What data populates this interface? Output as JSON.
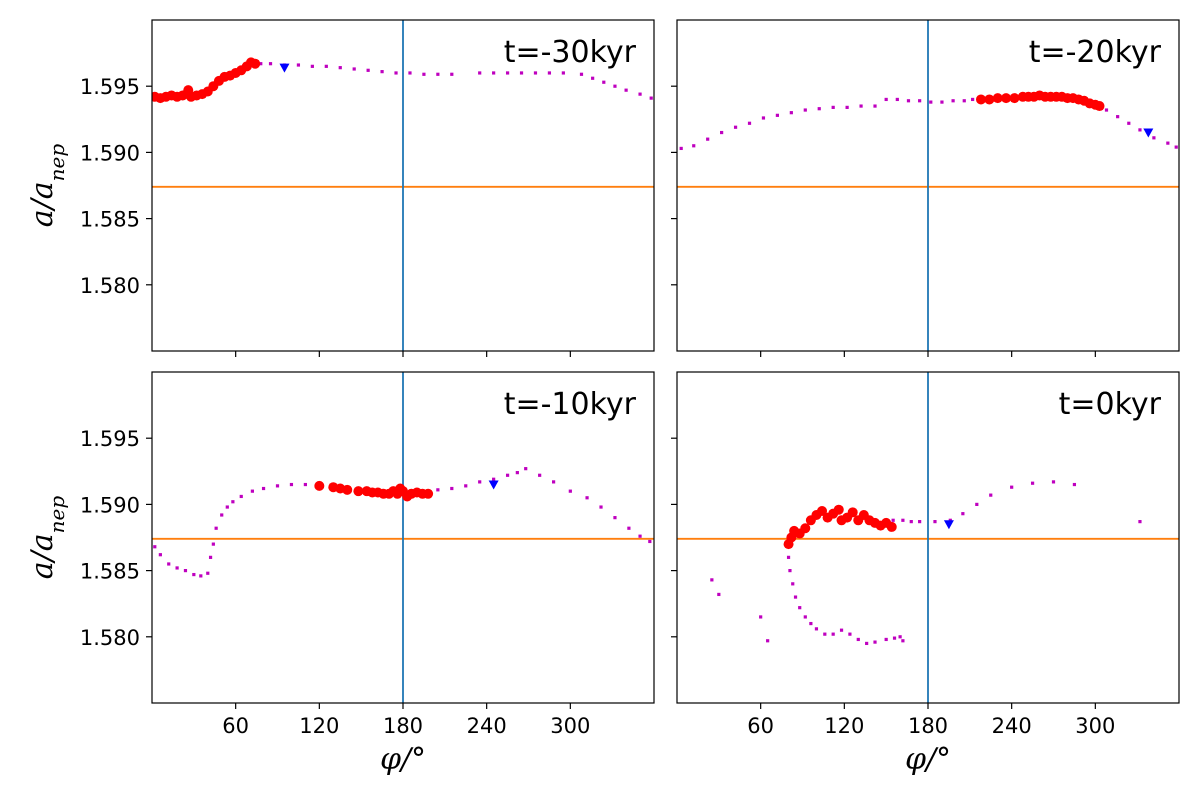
{
  "chart_data": [
    {
      "type": "scatter",
      "panel": "top-left",
      "label": "t=-30kyr",
      "xlim": [
        0,
        360
      ],
      "ylim": [
        1.575,
        1.6
      ],
      "xticks": [
        60,
        120,
        180,
        240,
        300
      ],
      "yticks": [
        1.58,
        1.585,
        1.59,
        1.595
      ],
      "xtick_labels": [],
      "ytick_labels": [
        "1.580",
        "1.585",
        "1.590",
        "1.595"
      ],
      "ylabel": "a/a_nep",
      "xlabel": "",
      "hline": 1.5874,
      "vline": 180,
      "colors": {
        "hline": "#ff7f0e",
        "vline": "#1f77b4",
        "small": "#bf00bf",
        "large": "#ff0000",
        "marker": "#0000ff"
      },
      "large_points": [
        [
          2,
          1.5942
        ],
        [
          6,
          1.5941
        ],
        [
          10,
          1.5942
        ],
        [
          14,
          1.5943
        ],
        [
          18,
          1.5942
        ],
        [
          22,
          1.5943
        ],
        [
          26,
          1.5947
        ],
        [
          28,
          1.5942
        ],
        [
          32,
          1.5943
        ],
        [
          36,
          1.5944
        ],
        [
          40,
          1.5946
        ],
        [
          44,
          1.595
        ],
        [
          48,
          1.5954
        ],
        [
          52,
          1.5957
        ],
        [
          56,
          1.5958
        ],
        [
          60,
          1.596
        ],
        [
          64,
          1.5962
        ],
        [
          68,
          1.5965
        ],
        [
          71,
          1.5968
        ],
        [
          74,
          1.5967
        ]
      ],
      "small_points": [
        [
          78,
          1.5967
        ],
        [
          85,
          1.5967
        ],
        [
          95,
          1.5966
        ],
        [
          105,
          1.5966
        ],
        [
          115,
          1.5965
        ],
        [
          125,
          1.5965
        ],
        [
          135,
          1.5964
        ],
        [
          145,
          1.5963
        ],
        [
          155,
          1.5962
        ],
        [
          165,
          1.5961
        ],
        [
          175,
          1.596
        ],
        [
          185,
          1.596
        ],
        [
          195,
          1.5959
        ],
        [
          205,
          1.5959
        ],
        [
          215,
          1.5959
        ],
        [
          235,
          1.596
        ],
        [
          245,
          1.596
        ],
        [
          255,
          1.596
        ],
        [
          265,
          1.596
        ],
        [
          275,
          1.596
        ],
        [
          285,
          1.596
        ],
        [
          295,
          1.596
        ],
        [
          308,
          1.5959
        ],
        [
          316,
          1.5956
        ],
        [
          324,
          1.5953
        ],
        [
          332,
          1.595
        ],
        [
          340,
          1.5947
        ],
        [
          350,
          1.5944
        ],
        [
          358,
          1.5941
        ]
      ],
      "blue_marker": [
        95,
        1.5964
      ]
    },
    {
      "type": "scatter",
      "panel": "top-right",
      "label": "t=-20kyr",
      "xlim": [
        0,
        360
      ],
      "ylim": [
        1.575,
        1.6
      ],
      "xticks": [
        60,
        120,
        180,
        240,
        300
      ],
      "yticks": [
        1.58,
        1.585,
        1.59,
        1.595
      ],
      "xtick_labels": [],
      "ytick_labels": [],
      "ylabel": "",
      "xlabel": "",
      "hline": 1.5874,
      "vline": 180,
      "colors": {
        "hline": "#ff7f0e",
        "vline": "#1f77b4",
        "small": "#bf00bf",
        "large": "#ff0000",
        "marker": "#0000ff"
      },
      "large_points": [
        [
          218,
          1.594
        ],
        [
          224,
          1.594
        ],
        [
          230,
          1.5941
        ],
        [
          236,
          1.5941
        ],
        [
          242,
          1.5941
        ],
        [
          248,
          1.5942
        ],
        [
          252,
          1.5942
        ],
        [
          256,
          1.5942
        ],
        [
          260,
          1.5943
        ],
        [
          264,
          1.5942
        ],
        [
          268,
          1.5942
        ],
        [
          272,
          1.5942
        ],
        [
          276,
          1.5942
        ],
        [
          280,
          1.5941
        ],
        [
          284,
          1.5941
        ],
        [
          288,
          1.594
        ],
        [
          292,
          1.5939
        ],
        [
          296,
          1.5937
        ],
        [
          300,
          1.5936
        ],
        [
          303,
          1.5935
        ]
      ],
      "small_points": [
        [
          3,
          1.5903
        ],
        [
          12,
          1.5905
        ],
        [
          22,
          1.591
        ],
        [
          32,
          1.5915
        ],
        [
          42,
          1.5919
        ],
        [
          52,
          1.5922
        ],
        [
          62,
          1.5926
        ],
        [
          72,
          1.5928
        ],
        [
          82,
          1.593
        ],
        [
          92,
          1.5932
        ],
        [
          102,
          1.5933
        ],
        [
          112,
          1.5934
        ],
        [
          122,
          1.5934
        ],
        [
          132,
          1.5935
        ],
        [
          142,
          1.5935
        ],
        [
          150,
          1.594
        ],
        [
          158,
          1.594
        ],
        [
          166,
          1.5939
        ],
        [
          174,
          1.5939
        ],
        [
          182,
          1.5938
        ],
        [
          190,
          1.5938
        ],
        [
          198,
          1.5939
        ],
        [
          206,
          1.5939
        ],
        [
          212,
          1.594
        ],
        [
          308,
          1.5932
        ],
        [
          316,
          1.5927
        ],
        [
          324,
          1.5922
        ],
        [
          332,
          1.5917
        ],
        [
          342,
          1.5911
        ],
        [
          352,
          1.5907
        ],
        [
          358,
          1.5904
        ]
      ],
      "blue_marker": [
        338,
        1.5915
      ]
    },
    {
      "type": "scatter",
      "panel": "bottom-left",
      "label": "t=-10kyr",
      "xlim": [
        0,
        360
      ],
      "ylim": [
        1.575,
        1.6
      ],
      "xticks": [
        60,
        120,
        180,
        240,
        300
      ],
      "yticks": [
        1.58,
        1.585,
        1.59,
        1.595
      ],
      "xtick_labels": [
        "60",
        "120",
        "180",
        "240",
        "300"
      ],
      "ytick_labels": [
        "1.580",
        "1.585",
        "1.590",
        "1.595"
      ],
      "ylabel": "a/a_nep",
      "xlabel": "φ/°",
      "hline": 1.5874,
      "vline": 180,
      "colors": {
        "hline": "#ff7f0e",
        "vline": "#1f77b4",
        "small": "#bf00bf",
        "large": "#ff0000",
        "marker": "#0000ff"
      },
      "large_points": [
        [
          120,
          1.5914
        ],
        [
          130,
          1.5913
        ],
        [
          135,
          1.5912
        ],
        [
          140,
          1.5911
        ],
        [
          148,
          1.591
        ],
        [
          154,
          1.591
        ],
        [
          158,
          1.5909
        ],
        [
          162,
          1.5909
        ],
        [
          166,
          1.5908
        ],
        [
          170,
          1.5908
        ],
        [
          173,
          1.591
        ],
        [
          176,
          1.5908
        ],
        [
          178,
          1.5912
        ],
        [
          180,
          1.591
        ],
        [
          183,
          1.5906
        ],
        [
          186,
          1.5908
        ],
        [
          190,
          1.5909
        ],
        [
          194,
          1.5908
        ],
        [
          198,
          1.5908
        ]
      ],
      "small_points": [
        [
          2,
          1.5868
        ],
        [
          6,
          1.5862
        ],
        [
          12,
          1.5855
        ],
        [
          18,
          1.5852
        ],
        [
          24,
          1.585
        ],
        [
          30,
          1.5847
        ],
        [
          35,
          1.5846
        ],
        [
          40,
          1.5848
        ],
        [
          42,
          1.586
        ],
        [
          44,
          1.587
        ],
        [
          46,
          1.5882
        ],
        [
          50,
          1.5892
        ],
        [
          54,
          1.5898
        ],
        [
          58,
          1.5902
        ],
        [
          64,
          1.5906
        ],
        [
          72,
          1.591
        ],
        [
          80,
          1.5912
        ],
        [
          90,
          1.5914
        ],
        [
          100,
          1.5915
        ],
        [
          110,
          1.5915
        ],
        [
          205,
          1.5911
        ],
        [
          215,
          1.5912
        ],
        [
          225,
          1.5914
        ],
        [
          235,
          1.5917
        ],
        [
          245,
          1.5919
        ],
        [
          255,
          1.5922
        ],
        [
          262,
          1.5924
        ],
        [
          268,
          1.5927
        ],
        [
          278,
          1.5922
        ],
        [
          288,
          1.5917
        ],
        [
          300,
          1.591
        ],
        [
          312,
          1.5905
        ],
        [
          322,
          1.5898
        ],
        [
          332,
          1.589
        ],
        [
          342,
          1.5882
        ],
        [
          350,
          1.5876
        ],
        [
          357,
          1.5872
        ]
      ],
      "blue_marker": [
        245,
        1.5915
      ]
    },
    {
      "type": "scatter",
      "panel": "bottom-right",
      "label": "t=0kyr",
      "xlim": [
        0,
        360
      ],
      "ylim": [
        1.575,
        1.6
      ],
      "xticks": [
        60,
        120,
        180,
        240,
        300
      ],
      "yticks": [
        1.58,
        1.585,
        1.59,
        1.595
      ],
      "xtick_labels": [
        "60",
        "120",
        "180",
        "240",
        "300"
      ],
      "ytick_labels": [],
      "ylabel": "",
      "xlabel": "φ/°",
      "hline": 1.5874,
      "vline": 180,
      "colors": {
        "hline": "#ff7f0e",
        "vline": "#1f77b4",
        "small": "#bf00bf",
        "large": "#ff0000",
        "marker": "#0000ff"
      },
      "large_points": [
        [
          80,
          1.587
        ],
        [
          82,
          1.5875
        ],
        [
          84,
          1.588
        ],
        [
          88,
          1.5878
        ],
        [
          92,
          1.5882
        ],
        [
          96,
          1.5888
        ],
        [
          100,
          1.5892
        ],
        [
          104,
          1.5895
        ],
        [
          108,
          1.589
        ],
        [
          112,
          1.5893
        ],
        [
          116,
          1.5896
        ],
        [
          118,
          1.5888
        ],
        [
          122,
          1.589
        ],
        [
          126,
          1.5894
        ],
        [
          130,
          1.5888
        ],
        [
          134,
          1.5892
        ],
        [
          138,
          1.5888
        ],
        [
          142,
          1.5886
        ],
        [
          146,
          1.5884
        ],
        [
          150,
          1.5886
        ],
        [
          154,
          1.5883
        ]
      ],
      "small_points": [
        [
          80,
          1.586
        ],
        [
          81,
          1.585
        ],
        [
          83,
          1.584
        ],
        [
          85,
          1.583
        ],
        [
          88,
          1.5822
        ],
        [
          92,
          1.5815
        ],
        [
          96,
          1.581
        ],
        [
          100,
          1.5806
        ],
        [
          106,
          1.5802
        ],
        [
          112,
          1.5802
        ],
        [
          118,
          1.5805
        ],
        [
          124,
          1.5802
        ],
        [
          130,
          1.5798
        ],
        [
          136,
          1.5795
        ],
        [
          142,
          1.5796
        ],
        [
          150,
          1.5798
        ],
        [
          156,
          1.5799
        ],
        [
          160,
          1.58
        ],
        [
          162,
          1.5797
        ],
        [
          155,
          1.5888
        ],
        [
          162,
          1.5888
        ],
        [
          168,
          1.5887
        ],
        [
          174,
          1.5887
        ],
        [
          185,
          1.5887
        ],
        [
          196,
          1.5888
        ],
        [
          205,
          1.5893
        ],
        [
          215,
          1.59
        ],
        [
          225,
          1.5907
        ],
        [
          240,
          1.5913
        ],
        [
          255,
          1.5916
        ],
        [
          270,
          1.5917
        ],
        [
          285,
          1.5915
        ],
        [
          332,
          1.5887
        ],
        [
          25,
          1.5843
        ],
        [
          30,
          1.5832
        ],
        [
          60,
          1.5815
        ],
        [
          65,
          1.5797
        ]
      ],
      "blue_marker": [
        195,
        1.5885
      ]
    }
  ]
}
